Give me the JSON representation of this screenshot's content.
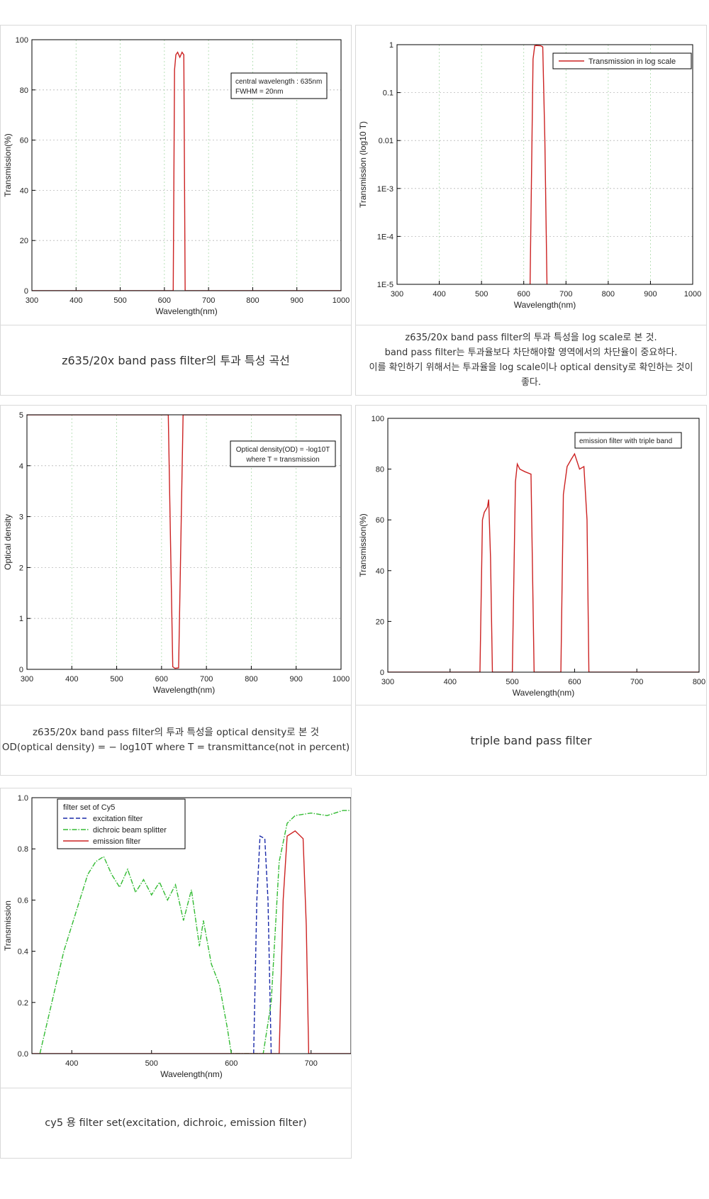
{
  "chart_data": [
    {
      "type": "line",
      "x_label": "Wavelength(nm)",
      "y_label": "Transmission(%)",
      "x": [
        300,
        620,
        623,
        626,
        630,
        635,
        640,
        644,
        647,
        1000
      ],
      "values": [
        0,
        0,
        88,
        94,
        95,
        93,
        95,
        94,
        0,
        0
      ],
      "color": "#cc2222",
      "xlim": [
        300,
        1000
      ],
      "ylim": [
        0,
        100
      ],
      "xticks": [
        300,
        400,
        500,
        600,
        700,
        800,
        900,
        1000
      ],
      "yticks": [
        0,
        20,
        40,
        60,
        80,
        100
      ],
      "grid": true,
      "annotations": [
        "central wavelength : 635nm",
        "FWHM = 20nm"
      ]
    },
    {
      "type": "line",
      "x_label": "Wavelength(nm)",
      "y_label": "Transmission (log10 T)",
      "log_y": true,
      "xlim": [
        300,
        1000
      ],
      "ylim": [
        1e-05,
        1
      ],
      "xticks": [
        300,
        400,
        500,
        600,
        700,
        800,
        900,
        1000
      ],
      "yticks": [
        {
          "value": 1e-05,
          "label": "1E-5"
        },
        {
          "value": 0.0001,
          "label": "1E-4"
        },
        {
          "value": 0.001,
          "label": "1E-3"
        },
        0.01,
        0.1,
        1
      ],
      "grid": true,
      "legend": "upper right",
      "series": [
        {
          "name": "Transmission in log scale",
          "color": "#cc2222",
          "dash": "solid",
          "x": [
            615,
            622,
            626,
            630,
            640,
            645,
            650,
            655
          ],
          "values": [
            1e-05,
            0.5,
            0.95,
            0.96,
            0.95,
            0.9,
            0.01,
            1e-05
          ]
        }
      ]
    },
    {
      "type": "line",
      "x_label": "Wavelength(nm)",
      "y_label": "Optical density",
      "x": [
        300,
        615,
        620,
        625,
        630,
        638,
        642,
        648,
        1000
      ],
      "values": [
        5,
        5,
        2.5,
        0.05,
        0.02,
        0.03,
        2,
        5,
        5
      ],
      "color": "#cc2222",
      "xlim": [
        300,
        1000
      ],
      "ylim": [
        0,
        5
      ],
      "xticks": [
        300,
        400,
        500,
        600,
        700,
        800,
        900,
        1000
      ],
      "yticks": [
        0,
        1,
        2,
        3,
        4,
        5
      ],
      "grid": true,
      "annotations": [
        "Optical density(OD) = -log10T",
        "where T = transmission"
      ]
    },
    {
      "type": "line",
      "x_label": "Wavelength(nm)",
      "y_label": "Transmission(%)",
      "x": [
        300,
        448,
        452,
        455,
        460,
        462,
        465,
        468,
        500,
        505,
        508,
        512,
        520,
        530,
        535,
        578,
        582,
        588,
        595,
        600,
        608,
        615,
        620,
        623,
        800
      ],
      "values": [
        0,
        0,
        60,
        63,
        65,
        68,
        45,
        0,
        0,
        75,
        82,
        80,
        79,
        78,
        0,
        0,
        70,
        81,
        84,
        86,
        80,
        81,
        60,
        0,
        0
      ],
      "color": "#cc2222",
      "xlim": [
        300,
        800
      ],
      "ylim": [
        0,
        100
      ],
      "xticks": [
        300,
        400,
        500,
        600,
        700,
        800
      ],
      "yticks": [
        0,
        20,
        40,
        60,
        80,
        100
      ],
      "grid": false,
      "annotations": [
        "emission filter with triple band"
      ]
    },
    {
      "type": "line",
      "x_label": "Wavelength(nm)",
      "y_label": "Transmission",
      "xlim": [
        350,
        750
      ],
      "ylim": [
        0,
        1
      ],
      "xticks": [
        400,
        500,
        600,
        700
      ],
      "yticks": [
        {
          "value": 0,
          "label": "0.0"
        },
        {
          "value": 0.2,
          "label": "0.2"
        },
        {
          "value": 0.4,
          "label": "0.4"
        },
        {
          "value": 0.6,
          "label": "0.6"
        },
        {
          "value": 0.8,
          "label": "0.8"
        },
        {
          "value": 1,
          "label": "1.0"
        }
      ],
      "grid": false,
      "legend": "upper left",
      "legend_title": "filter set of Cy5",
      "series": [
        {
          "name": "excitation filter",
          "color": "#1a2aa8",
          "dash": "dashed",
          "x": [
            628,
            632,
            636,
            642,
            646,
            650
          ],
          "values": [
            0,
            0.6,
            0.85,
            0.84,
            0.6,
            0
          ]
        },
        {
          "name": "dichroic beam splitter",
          "color": "#33bb33",
          "dash": "dashdot",
          "x": [
            360,
            375,
            390,
            400,
            410,
            420,
            430,
            440,
            450,
            460,
            470,
            480,
            490,
            500,
            510,
            520,
            530,
            540,
            550,
            560,
            565,
            575,
            585,
            595,
            600,
            640,
            650,
            660,
            670,
            680,
            700,
            720,
            740,
            750
          ],
          "values": [
            0,
            0.2,
            0.4,
            0.5,
            0.6,
            0.7,
            0.75,
            0.77,
            0.7,
            0.65,
            0.72,
            0.63,
            0.68,
            0.62,
            0.67,
            0.6,
            0.66,
            0.52,
            0.64,
            0.42,
            0.52,
            0.35,
            0.27,
            0.1,
            0,
            0,
            0.2,
            0.75,
            0.9,
            0.93,
            0.94,
            0.93,
            0.95,
            0.95
          ]
        },
        {
          "name": "emission filter",
          "color": "#cc2222",
          "dash": "solid",
          "x": [
            350,
            660,
            665,
            670,
            680,
            690,
            694,
            697,
            750
          ],
          "values": [
            0,
            0,
            0.6,
            0.85,
            0.87,
            0.84,
            0.5,
            0,
            0
          ]
        }
      ]
    }
  ],
  "captions": [
    [
      "z635/20x band pass filter의 투과 특성 곡선"
    ],
    [
      "z635/20x band pass filter의 투과 특성을 log scale로 본 것.",
      "band pass filter는 투과율보다 차단해야할 영역에서의 차단율이 중요하다.",
      "이를 확인하기 위해서는 투과율을 log scale이나 optical density로 확인하는 것이",
      "좋다."
    ],
    [
      "z635/20x band pass filter의 투과 특성을 optical density로 본 것",
      "OD(optical density) = − log10T  where T = transmittance(not in percent)"
    ],
    [
      "triple band pass filter"
    ],
    [
      "cy5 용 filter set(excitation, dichroic, emission filter)"
    ]
  ]
}
